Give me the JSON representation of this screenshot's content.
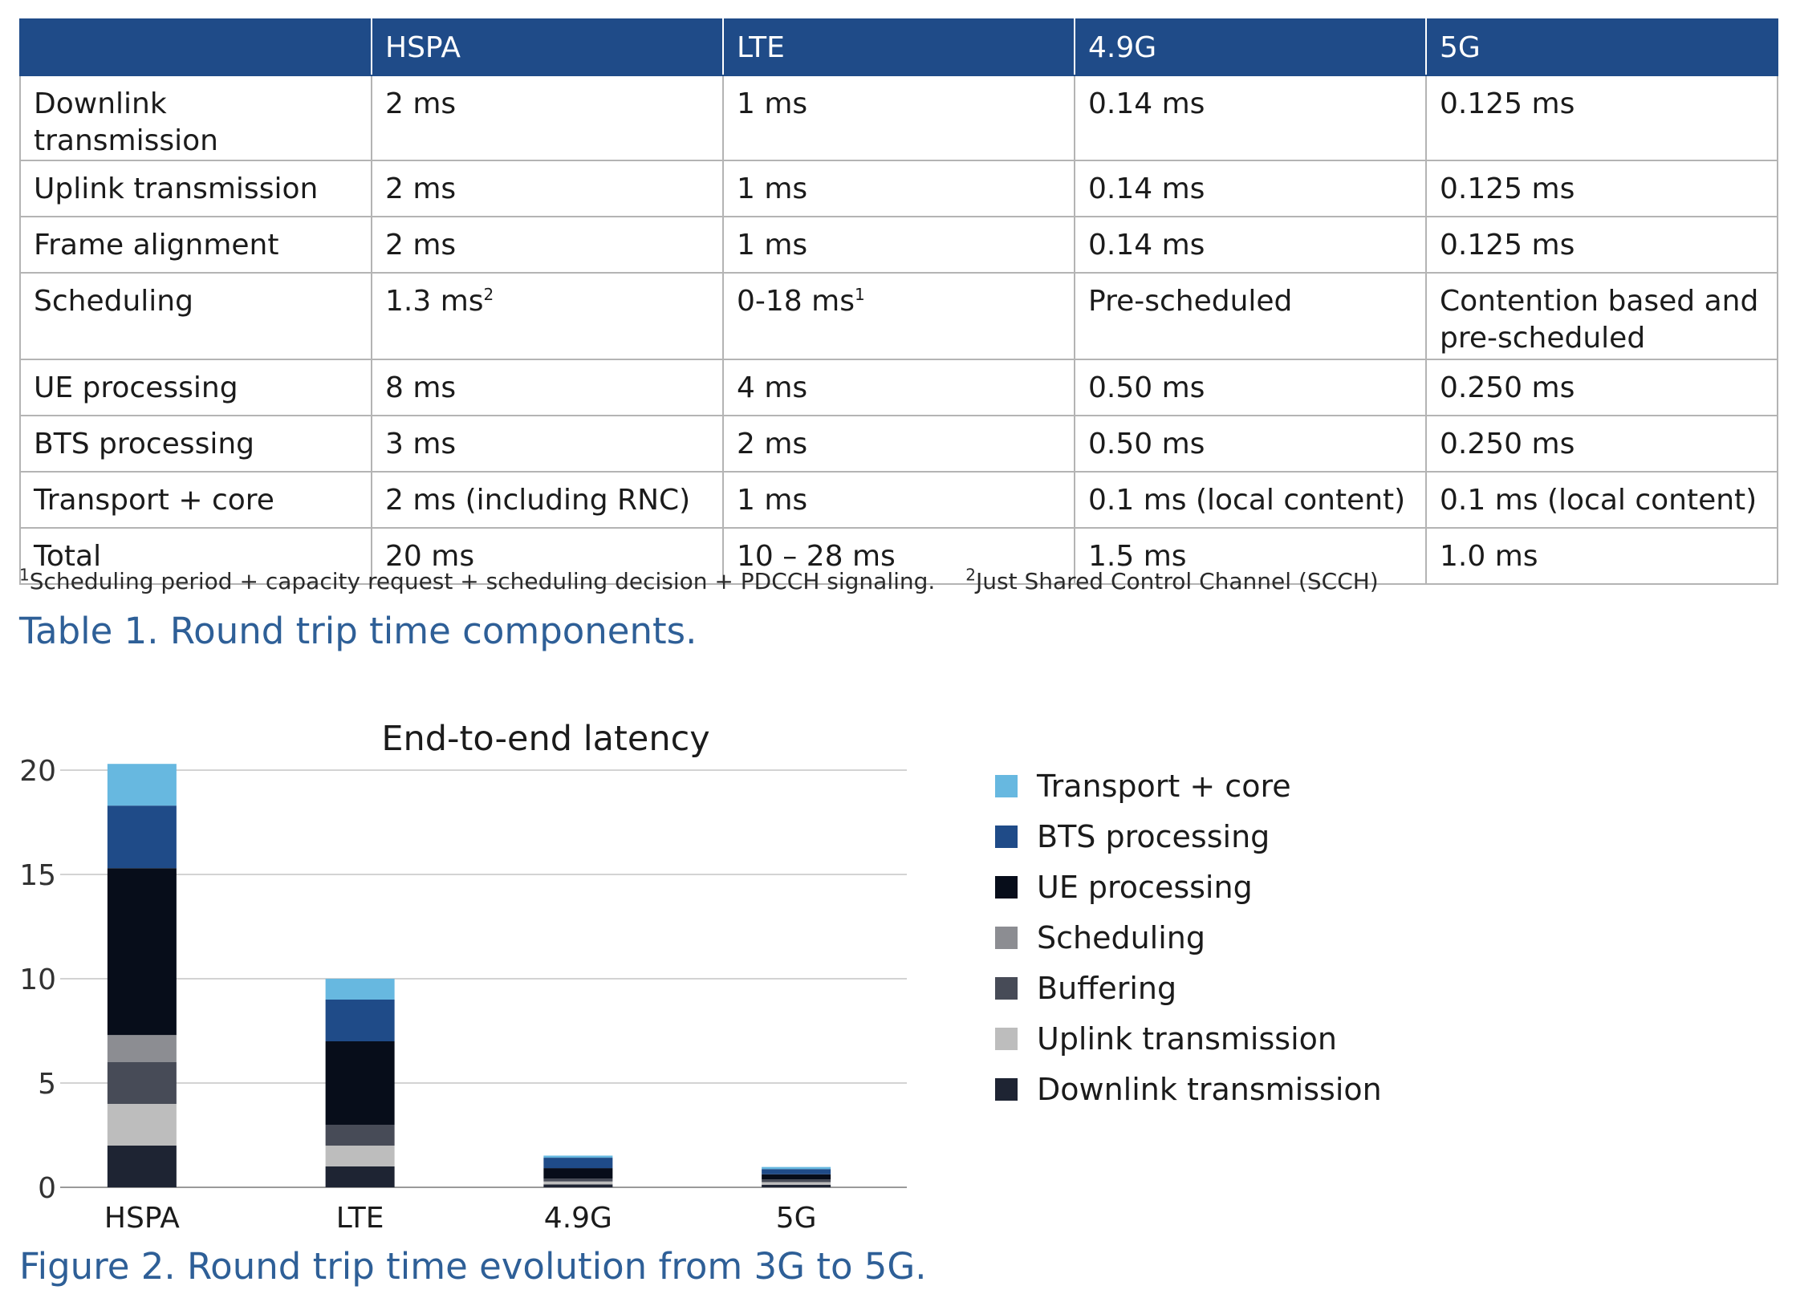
{
  "table": {
    "headers": [
      "",
      "HSPA",
      "LTE",
      "4.9G",
      "5G"
    ],
    "rows": [
      {
        "label": "Downlink transmission",
        "cells": [
          {
            "text": "2 ms"
          },
          {
            "text": "1 ms"
          },
          {
            "text": "0.14 ms"
          },
          {
            "text": "0.125 ms"
          }
        ]
      },
      {
        "label": "Uplink transmission",
        "cells": [
          {
            "text": "2 ms"
          },
          {
            "text": "1 ms"
          },
          {
            "text": "0.14 ms"
          },
          {
            "text": "0.125 ms"
          }
        ]
      },
      {
        "label": "Frame alignment",
        "cells": [
          {
            "text": "2 ms"
          },
          {
            "text": "1 ms"
          },
          {
            "text": "0.14 ms"
          },
          {
            "text": "0.125 ms"
          }
        ]
      },
      {
        "label": "Scheduling",
        "cells": [
          {
            "text": "1.3 ms",
            "sup": "2"
          },
          {
            "text": "0-18 ms",
            "sup": "1"
          },
          {
            "text": "Pre-scheduled"
          },
          {
            "text": "Contention based and pre-scheduled"
          }
        ]
      },
      {
        "label": "UE processing",
        "cells": [
          {
            "text": "8 ms"
          },
          {
            "text": "4 ms"
          },
          {
            "text": "0.50 ms"
          },
          {
            "text": "0.250 ms"
          }
        ]
      },
      {
        "label": "BTS processing",
        "cells": [
          {
            "text": "3 ms"
          },
          {
            "text": "2 ms"
          },
          {
            "text": "0.50 ms"
          },
          {
            "text": "0.250 ms"
          }
        ]
      },
      {
        "label": "Transport + core",
        "cells": [
          {
            "text": "2 ms (including RNC)"
          },
          {
            "text": "1 ms"
          },
          {
            "text": "0.1 ms (local content)"
          },
          {
            "text": "0.1 ms (local content)"
          }
        ]
      },
      {
        "label": "Total",
        "cells": [
          {
            "text": "20 ms"
          },
          {
            "text": "10 – 28 ms"
          },
          {
            "text": "1.5 ms"
          },
          {
            "text": "1.0 ms"
          }
        ]
      }
    ]
  },
  "footnotes": {
    "fn1_marker": "1",
    "fn1_text": "Scheduling period + capacity request + scheduling decision + PDCCH signaling.",
    "fn2_marker": "2",
    "fn2_text": "Just Shared Control Channel (SCCH)"
  },
  "table_caption": "Table 1. Round trip time components.",
  "figure_caption": "Figure 2. Round trip time evolution from 3G to 5G.",
  "chart_data": {
    "type": "bar",
    "stacked": true,
    "title": "End-to-end latency",
    "categories": [
      "HSPA",
      "LTE",
      "4.9G",
      "5G"
    ],
    "ylim": [
      0,
      20
    ],
    "yticks": [
      0,
      5,
      10,
      15,
      20
    ],
    "grid": true,
    "legend_position": "right",
    "series": [
      {
        "name": "Downlink transmission",
        "color": "#1e2433",
        "values": [
          2,
          1,
          0.14,
          0.125
        ]
      },
      {
        "name": "Uplink transmission",
        "color": "#bdbdbd",
        "values": [
          2,
          1,
          0.14,
          0.125
        ]
      },
      {
        "name": "Buffering",
        "color": "#474b57",
        "values": [
          2,
          1,
          0.14,
          0.125
        ]
      },
      {
        "name": "Scheduling",
        "color": "#8c8d92",
        "values": [
          1.3,
          0,
          0,
          0
        ]
      },
      {
        "name": "UE processing",
        "color": "#070d1a",
        "values": [
          8,
          4,
          0.5,
          0.25
        ]
      },
      {
        "name": "BTS processing",
        "color": "#1f4b88",
        "values": [
          3,
          2,
          0.5,
          0.25
        ]
      },
      {
        "name": "Transport + core",
        "color": "#67b8e0",
        "values": [
          2,
          1,
          0.1,
          0.1
        ]
      }
    ],
    "legend_order": [
      "Transport + core",
      "BTS processing",
      "UE processing",
      "Scheduling",
      "Buffering",
      "Uplink transmission",
      "Downlink transmission"
    ]
  }
}
